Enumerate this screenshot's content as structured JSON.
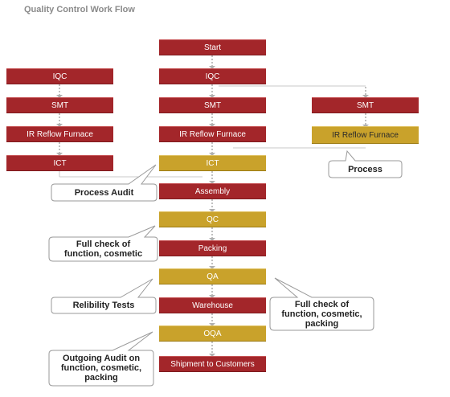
{
  "title": "Quality Control Work Flow",
  "main_flow": [
    "Start",
    "IQC",
    "SMT",
    "IR Reflow Furnace",
    "ICT",
    "Assembly",
    "QC",
    "Packing",
    "QA",
    "Warehouse",
    "OQA",
    "Shipment to Customers"
  ],
  "left_flow": [
    "IQC",
    "SMT",
    "IR Reflow Furnace",
    "ICT"
  ],
  "right_flow": [
    "SMT",
    "IR Reflow Furnace"
  ],
  "callouts": {
    "process": "Process",
    "process_audit": "Process Audit",
    "qc_note_line1": "Full check of",
    "qc_note_line2": "function, cosmetic",
    "reliability": "Relibility Tests",
    "qa_note_line1": "Full check of",
    "qa_note_line2": "function, cosmetic,",
    "qa_note_line3": "packing",
    "oqa_note_line1": "Outgoing Audit on",
    "oqa_note_line2": "function, cosmetic,",
    "oqa_note_line3": "packing"
  },
  "colors": {
    "red": "#a3262a",
    "gold": "#c9a22b",
    "connector": "#b8b8b8",
    "title": "#8a8a8a"
  }
}
